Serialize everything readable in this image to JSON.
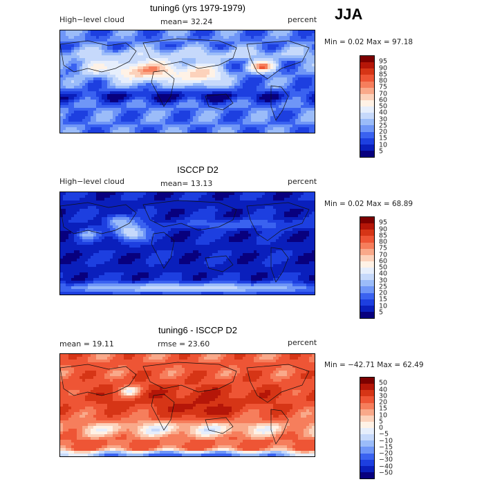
{
  "season": "JJA",
  "colors": {
    "cloud": [
      "#08007e",
      "#0a1fbc",
      "#1d3fe0",
      "#3a62f0",
      "#6f96f7",
      "#9bbcf9",
      "#c6d9fb",
      "#e6eefc",
      "#fff2e6",
      "#fcd2bb",
      "#f9a98a",
      "#f67e5c",
      "#ee5535",
      "#d63516",
      "#b51608",
      "#7d0000"
    ],
    "diff": [
      "#08007e",
      "#0a1fbc",
      "#1d3fe0",
      "#3a62f0",
      "#6f96f7",
      "#9bbcf9",
      "#c6d9fb",
      "#e6eefc",
      "#fff2e6",
      "#fcd2bb",
      "#f9a98a",
      "#f67e5c",
      "#ee5535",
      "#d63516",
      "#b51608",
      "#7d0000"
    ]
  },
  "panels": [
    {
      "title": "tuning6 (yrs 1979-1979)",
      "left_label": "High−level cloud",
      "center_label": "mean=   32.24",
      "units": "percent",
      "minmax": "Min =    0.02 Max =   97.18",
      "scale": "cloud",
      "ticks": [
        "95",
        "90",
        "85",
        "80",
        "75",
        "70",
        "60",
        "50",
        "40",
        "30",
        "25",
        "20",
        "15",
        "10",
        "5"
      ],
      "field": "model"
    },
    {
      "title": "ISCCP D2",
      "left_label": "High−level cloud",
      "center_label": "mean=   13.13",
      "units": "percent",
      "minmax": "Min =    0.02 Max =   68.89",
      "scale": "cloud",
      "ticks": [
        "95",
        "90",
        "85",
        "80",
        "75",
        "70",
        "60",
        "50",
        "40",
        "30",
        "25",
        "20",
        "15",
        "10",
        "5"
      ],
      "field": "obs"
    },
    {
      "title": "tuning6 - ISCCP D2",
      "left_label": "mean =   19.11",
      "center_label": "rmse =   23.60",
      "units": "percent",
      "minmax": "Min = −42.71 Max =   62.49",
      "scale": "diff",
      "ticks": [
        "50",
        "40",
        "30",
        "20",
        "15",
        "10",
        "5",
        "0",
        "−5",
        "−10",
        "−15",
        "−20",
        "−30",
        "−40",
        "−50"
      ],
      "field": "diff"
    }
  ]
}
